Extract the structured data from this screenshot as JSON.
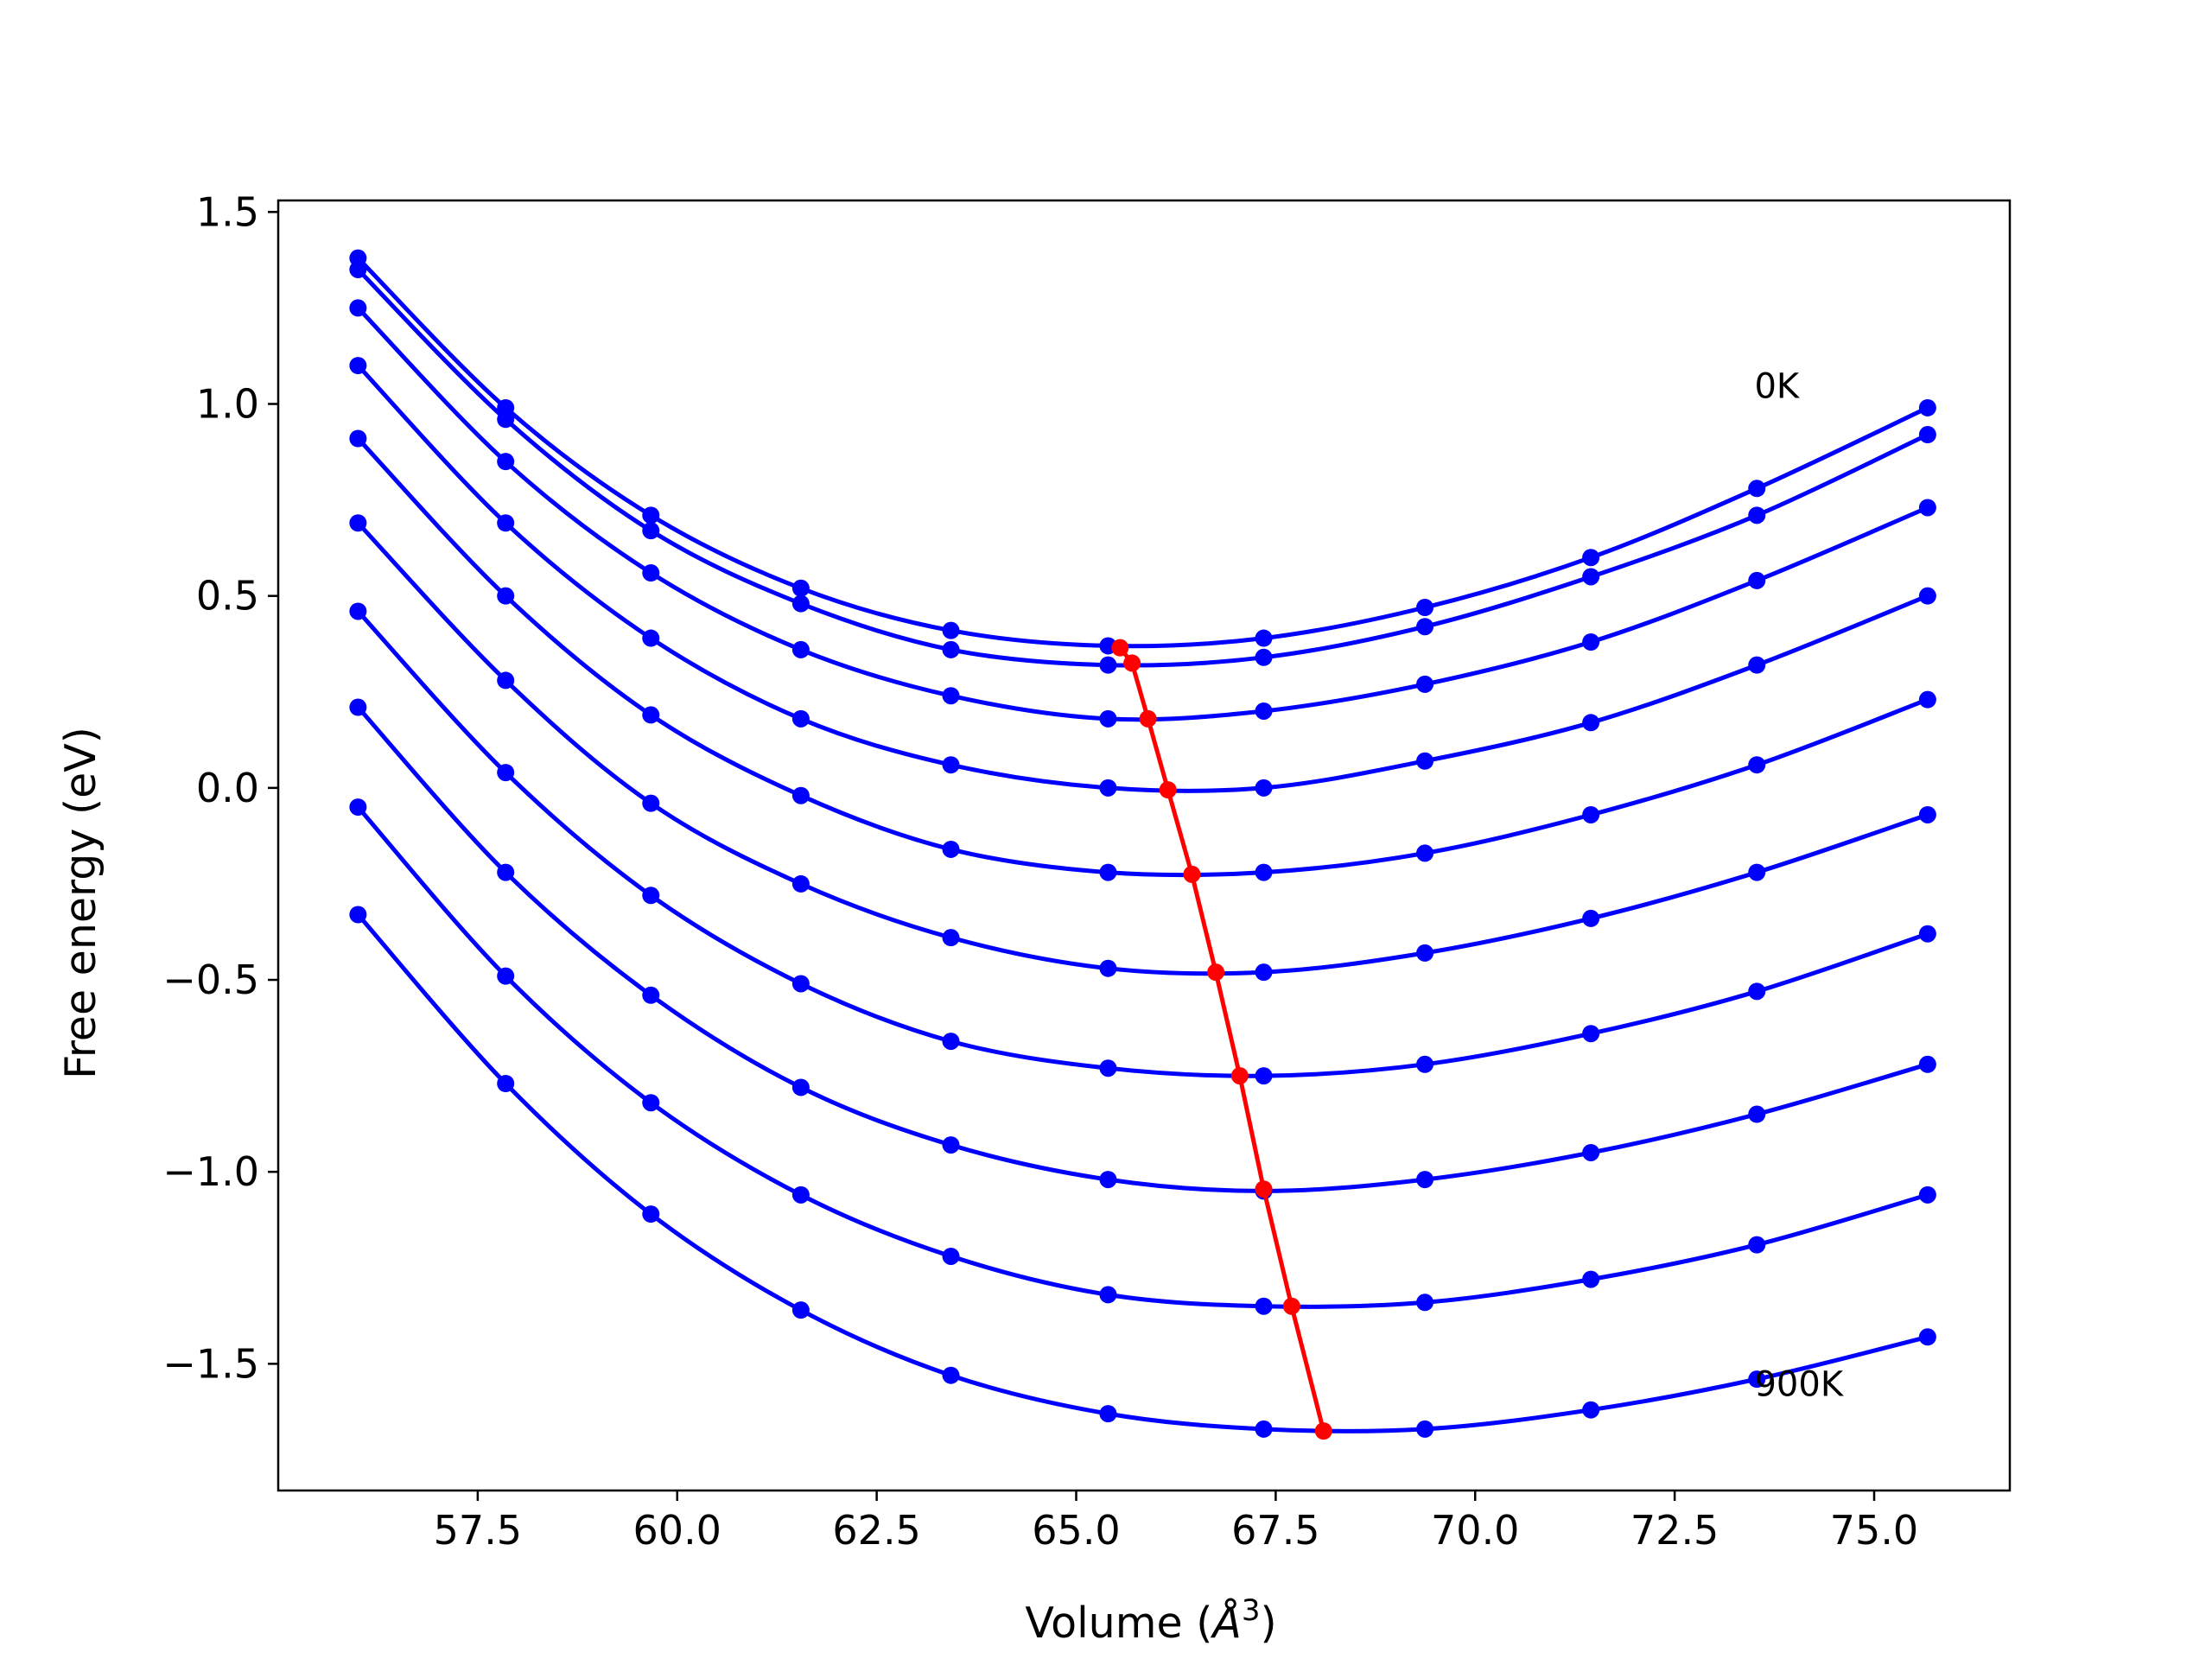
{
  "chart_data": {
    "type": "line",
    "title": "",
    "xlabel": "Volume (",
    "xlabel_symbol": "Å",
    "xlabel_exp": "3",
    "xlabel_close": ")",
    "ylabel": "Free energy (eV)",
    "xlim": [
      55.0,
      76.7
    ],
    "ylim": [
      -1.83,
      1.53
    ],
    "xticks": [
      57.5,
      60.0,
      62.5,
      65.0,
      67.5,
      70.0,
      72.5,
      75.0
    ],
    "xtick_labels": [
      "57.5",
      "60.0",
      "62.5",
      "65.0",
      "67.5",
      "70.0",
      "72.5",
      "75.0"
    ],
    "yticks": [
      1.5,
      1.0,
      0.5,
      0.0,
      -0.5,
      -1.0,
      -1.5
    ],
    "ytick_labels": [
      "1.5",
      "1.0",
      "0.5",
      "0.0",
      "−0.5",
      "−1.0",
      "−1.5"
    ],
    "grid": false,
    "legend": "none",
    "annotations": [
      {
        "text": "0K",
        "x": 73.5,
        "y": 1.05
      },
      {
        "text": "900K",
        "x": 73.5,
        "y": -1.55
      }
    ],
    "series_color": "#0000ff",
    "min_line_color": "#ff0000",
    "x": [
      56.0,
      57.85,
      59.67,
      61.55,
      63.43,
      65.4,
      67.35,
      69.37,
      71.45,
      73.53,
      75.67
    ],
    "series": [
      {
        "values": [
          1.38,
          0.99,
          0.71,
          0.52,
          0.41,
          0.37,
          0.39,
          0.47,
          0.6,
          0.78,
          0.99
        ],
        "min": [
          65.55,
          0.365
        ]
      },
      {
        "values": [
          1.35,
          0.96,
          0.67,
          0.48,
          0.36,
          0.32,
          0.34,
          0.42,
          0.55,
          0.71,
          0.92
        ],
        "min": [
          65.7,
          0.325
        ]
      },
      {
        "values": [
          1.25,
          0.85,
          0.56,
          0.36,
          0.24,
          0.18,
          0.2,
          0.27,
          0.38,
          0.54,
          0.73
        ],
        "min": [
          65.9,
          0.18
        ]
      },
      {
        "values": [
          1.1,
          0.69,
          0.39,
          0.18,
          0.06,
          0.0,
          0.0,
          0.07,
          0.17,
          0.32,
          0.5
        ],
        "min": [
          66.15,
          -0.005
        ]
      },
      {
        "values": [
          0.91,
          0.5,
          0.19,
          -0.02,
          -0.16,
          -0.22,
          -0.22,
          -0.17,
          -0.07,
          0.06,
          0.23
        ],
        "min": [
          66.45,
          -0.225
        ]
      },
      {
        "values": [
          0.69,
          0.28,
          -0.04,
          -0.25,
          -0.39,
          -0.47,
          -0.48,
          -0.43,
          -0.34,
          -0.22,
          -0.07
        ],
        "min": [
          66.75,
          -0.48
        ]
      },
      {
        "values": [
          0.46,
          0.04,
          -0.28,
          -0.51,
          -0.66,
          -0.73,
          -0.75,
          -0.72,
          -0.64,
          -0.53,
          -0.38
        ],
        "min": [
          67.05,
          -0.75
        ]
      },
      {
        "values": [
          0.21,
          -0.22,
          -0.54,
          -0.78,
          -0.93,
          -1.02,
          -1.05,
          -1.02,
          -0.95,
          -0.85,
          -0.72
        ],
        "min": [
          67.35,
          -1.045
        ]
      },
      {
        "values": [
          -0.05,
          -0.49,
          -0.82,
          -1.06,
          -1.22,
          -1.32,
          -1.35,
          -1.34,
          -1.28,
          -1.19,
          -1.06
        ],
        "min": [
          67.7,
          -1.35
        ]
      },
      {
        "values": [
          -0.33,
          -0.77,
          -1.11,
          -1.36,
          -1.53,
          -1.63,
          -1.67,
          -1.67,
          -1.62,
          -1.54,
          -1.43
        ],
        "min": [
          68.1,
          -1.675
        ]
      }
    ]
  }
}
